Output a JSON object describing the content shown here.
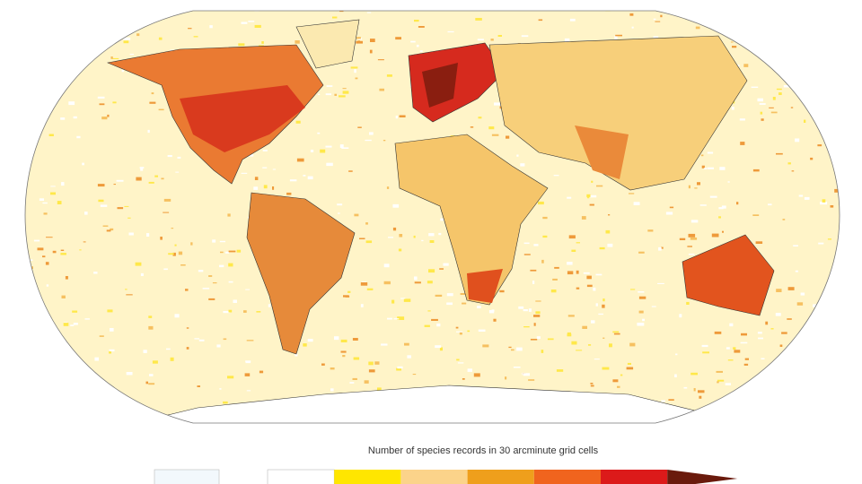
{
  "legend": {
    "title": "Number of species records in 30 arcminute grid cells",
    "no_data_color": "#f2f8fc",
    "swatches": [
      "#ffffff",
      "#ffe600",
      "#fbd38a",
      "#ef9f1c",
      "#f0641e",
      "#dc1a1a"
    ],
    "arrow_color": "#6a1a0c"
  }
}
